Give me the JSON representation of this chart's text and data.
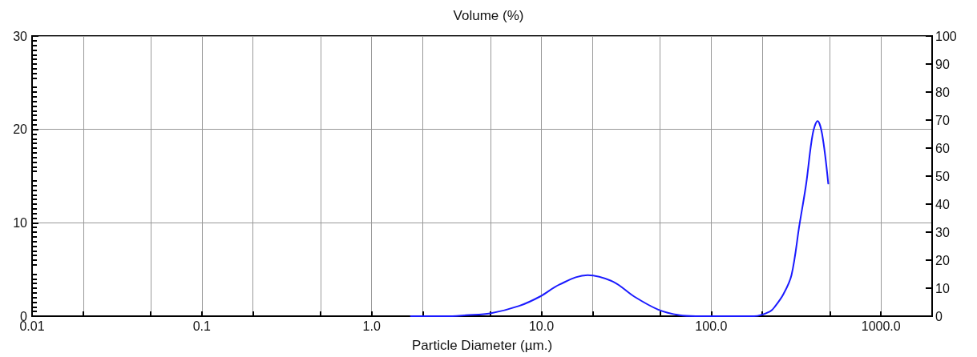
{
  "chart_data": {
    "type": "line",
    "title": "Volume (%)",
    "xlabel": "Particle Diameter (µm.)",
    "x": [
      1.7,
      3.0,
      3.6,
      5.0,
      7.4,
      9.8,
      12.8,
      18.7,
      26.4,
      35.2,
      48.8,
      65.1,
      81,
      120,
      179,
      222,
      239,
      267,
      297,
      331,
      362,
      396,
      423,
      450,
      489
    ],
    "series": [
      {
        "color": "#1a1aff",
        "values": [
          0,
          0,
          0.1,
          0.3,
          1.1,
          2.1,
          3.4,
          4.4,
          3.7,
          2.1,
          0.7,
          0.1,
          0,
          0,
          0,
          0.5,
          1.1,
          2.4,
          4.4,
          9.8,
          14.1,
          19.5,
          20.9,
          19.5,
          14.2
        ]
      }
    ],
    "log": "x",
    "xlim": [
      0.01,
      2000
    ],
    "xticks": [
      {
        "value": 0.01,
        "label": "0.01"
      },
      {
        "value": 0.02,
        "label": null
      },
      {
        "value": 0.05,
        "label": null
      },
      {
        "value": 0.1,
        "label": "0.1"
      },
      {
        "value": 0.2,
        "label": null
      },
      {
        "value": 0.5,
        "label": null
      },
      {
        "value": 1,
        "label": "1.0"
      },
      {
        "value": 2,
        "label": null
      },
      {
        "value": 5,
        "label": null
      },
      {
        "value": 10,
        "label": "10.0"
      },
      {
        "value": 20,
        "label": null
      },
      {
        "value": 50,
        "label": null
      },
      {
        "value": 100,
        "label": "100.0"
      },
      {
        "value": 200,
        "label": null
      },
      {
        "value": 500,
        "label": null
      },
      {
        "value": 1000,
        "label": "1000.0"
      }
    ],
    "ylim": [
      0,
      30
    ],
    "yticks": [
      0,
      10,
      20,
      30
    ],
    "y2lim": [
      0,
      100
    ],
    "y2ticks": [
      0,
      10,
      20,
      30,
      40,
      50,
      60,
      70,
      80,
      90,
      100
    ],
    "grid": true,
    "marker": "none",
    "line_style": "solid"
  }
}
